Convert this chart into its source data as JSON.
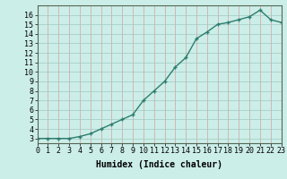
{
  "x": [
    0,
    1,
    2,
    3,
    4,
    5,
    6,
    7,
    8,
    9,
    10,
    11,
    12,
    13,
    14,
    15,
    16,
    17,
    18,
    19,
    20,
    21,
    22,
    23
  ],
  "y": [
    3,
    3,
    3,
    3,
    3.2,
    3.5,
    4.0,
    4.5,
    5.0,
    5.5,
    7.0,
    8.0,
    9.0,
    10.5,
    11.5,
    13.5,
    14.2,
    15.0,
    15.2,
    15.5,
    15.8,
    16.5,
    15.5,
    15.2
  ],
  "line_color": "#2d7d6e",
  "bg_color": "#cceee8",
  "grid_color_major": "#c8a0a0",
  "grid_color_minor": "#b8d8d8",
  "xlabel": "Humidex (Indice chaleur)",
  "xlim": [
    0,
    23
  ],
  "ylim": [
    2.5,
    17
  ],
  "yticks": [
    3,
    4,
    5,
    6,
    7,
    8,
    9,
    10,
    11,
    12,
    13,
    14,
    15,
    16
  ],
  "xticks": [
    0,
    1,
    2,
    3,
    4,
    5,
    6,
    7,
    8,
    9,
    10,
    11,
    12,
    13,
    14,
    15,
    16,
    17,
    18,
    19,
    20,
    21,
    22,
    23
  ],
  "markersize": 3,
  "linewidth": 1.0,
  "xlabel_fontsize": 7,
  "tick_fontsize": 6
}
